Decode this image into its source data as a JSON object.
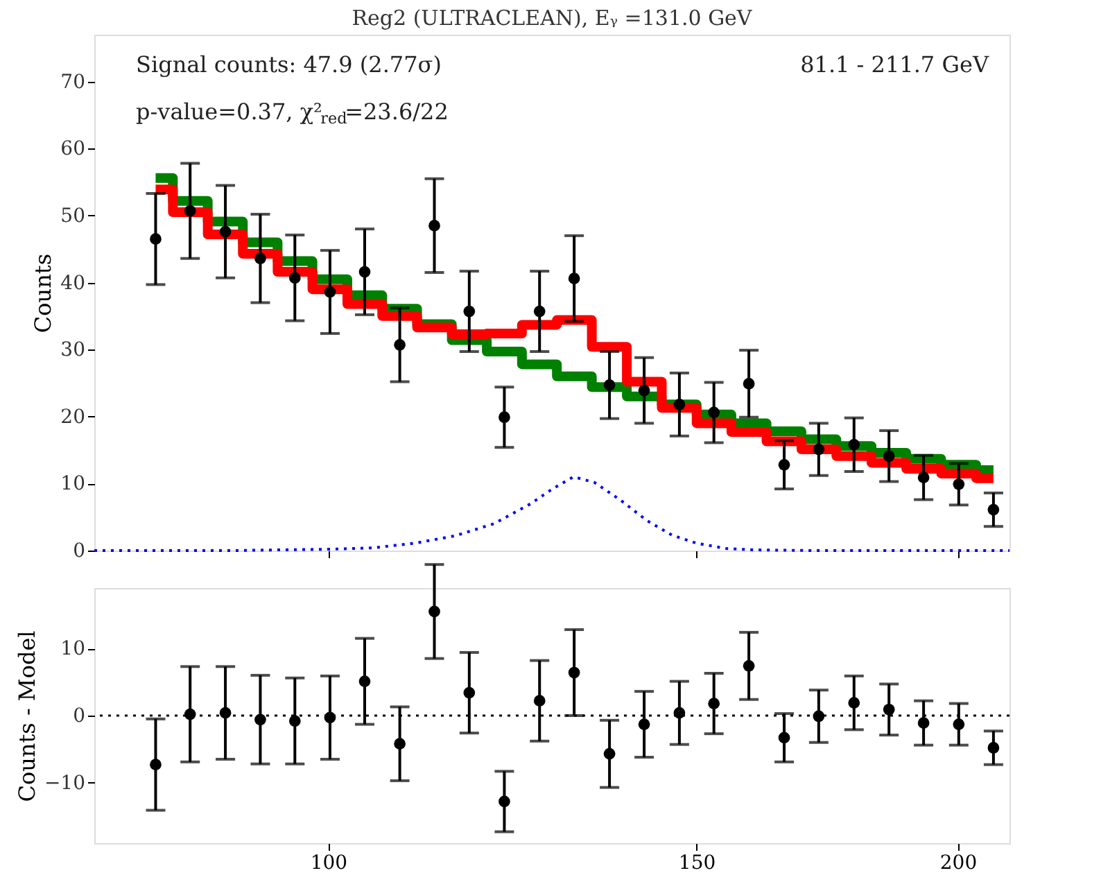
{
  "chart_data": [
    {
      "type": "scatter",
      "title": "Reg2 (ULTRACLEAN), Eᵧ =131.0 GeV",
      "ylabel": "Counts",
      "log": "x",
      "xlim": [
        77.3,
        211.7
      ],
      "xticks": [
        100,
        150,
        200
      ],
      "ylim": [
        0,
        77
      ],
      "yticks": [
        0,
        10,
        20,
        30,
        40,
        50,
        60,
        70
      ],
      "tick_labels": "y",
      "grid": false,
      "annotations": [
        "Signal counts: 47.9 (2.77σ)",
        "p-value=0.37, χ²$_{red}$=23.6/22",
        "81.1 - 211.7 GeV"
      ],
      "x": [
        82.7,
        85.9,
        89.3,
        92.8,
        96.4,
        100.2,
        104.1,
        108.2,
        112.4,
        116.8,
        121.4,
        126.2,
        131.1,
        136.3,
        141.6,
        147.2,
        152.9,
        158.9,
        165.2,
        171.6,
        178.4,
        185.4,
        192.6,
        200.2,
        208.0
      ],
      "series": [
        {
          "type": "step",
          "color": "#008000",
          "values": [
            55.6,
            52.2,
            49.1,
            46.0,
            43.2,
            40.5,
            38.1,
            36.1,
            33.8,
            31.4,
            29.7,
            27.8,
            26.0,
            24.4,
            23.0,
            21.8,
            20.3,
            19.0,
            17.8,
            16.6,
            15.6,
            14.6,
            13.7,
            12.8,
            12.0
          ]
        },
        {
          "type": "step",
          "color": "#ff0000",
          "values": [
            53.9,
            50.5,
            47.2,
            44.3,
            41.6,
            39.0,
            36.8,
            35.0,
            33.3,
            32.3,
            32.4,
            33.7,
            34.4,
            30.4,
            25.2,
            21.3,
            19.0,
            17.7,
            16.3,
            15.1,
            14.1,
            13.1,
            12.2,
            11.5,
            10.8
          ]
        },
        {
          "type": "line",
          "color": "#0000ff",
          "line_style": "dotted",
          "marker": "none",
          "x": [
            77.3,
            90,
            100,
            105,
            110,
            115,
            120,
            125,
            128,
            131,
            134,
            138,
            142,
            146,
            150,
            155,
            160,
            170,
            211.7
          ],
          "values": [
            0,
            0,
            0.2,
            0.4,
            1.1,
            2.2,
            4.0,
            7.0,
            9.2,
            11.0,
            10.2,
            7.5,
            4.5,
            2.3,
            1.1,
            0.3,
            0.1,
            0,
            0
          ]
        },
        {
          "type": "scatter",
          "color": "#000000",
          "marker": "circle",
          "values": [
            46.5,
            50.7,
            47.6,
            43.6,
            40.7,
            38.6,
            41.6,
            30.7,
            48.5,
            35.7,
            19.9,
            35.7,
            40.6,
            24.7,
            23.9,
            21.8,
            20.6,
            24.9,
            12.8,
            15.1,
            15.8,
            14.1,
            10.9,
            9.9,
            6.1
          ],
          "errors": [
            6.8,
            7.1,
            6.9,
            6.6,
            6.4,
            6.2,
            6.4,
            5.5,
            7.0,
            6.0,
            4.5,
            6.0,
            6.4,
            5.0,
            4.9,
            4.7,
            4.5,
            5.0,
            3.6,
            3.9,
            4.0,
            3.8,
            3.3,
            3.1,
            2.5
          ]
        }
      ]
    },
    {
      "type": "scatter",
      "ylabel": "Counts - Model",
      "log": "x",
      "xlim": [
        77.3,
        211.7
      ],
      "xticks": [
        100,
        150,
        200
      ],
      "ylim": [
        -19,
        19
      ],
      "yticks": [
        -10,
        0,
        10
      ],
      "grid": false,
      "ref_lines": [
        {
          "axis": "y",
          "value": 0,
          "line_style": "dotted",
          "color": "#000000"
        }
      ],
      "x": [
        82.7,
        85.9,
        89.3,
        92.8,
        96.4,
        100.2,
        104.1,
        108.2,
        112.4,
        116.8,
        121.4,
        126.2,
        131.1,
        136.3,
        141.6,
        147.2,
        152.9,
        158.9,
        165.2,
        171.6,
        178.4,
        185.4,
        192.6,
        200.2,
        208.0
      ],
      "series": [
        {
          "type": "scatter",
          "color": "#000000",
          "marker": "circle",
          "values": [
            -7.3,
            0.2,
            0.4,
            -0.6,
            -0.8,
            -0.3,
            5.1,
            -4.2,
            15.5,
            3.4,
            -12.8,
            2.2,
            6.4,
            -5.7,
            -1.3,
            0.4,
            1.8,
            7.4,
            -3.3,
            -0.1,
            1.9,
            0.9,
            -1.1,
            -1.3,
            -4.8
          ],
          "errors": [
            6.8,
            7.1,
            6.9,
            6.6,
            6.4,
            6.2,
            6.4,
            5.5,
            7.0,
            6.0,
            4.5,
            6.0,
            6.4,
            5.0,
            4.9,
            4.7,
            4.5,
            5.0,
            3.6,
            3.9,
            4.0,
            3.8,
            3.3,
            3.1,
            2.5
          ]
        }
      ]
    }
  ]
}
